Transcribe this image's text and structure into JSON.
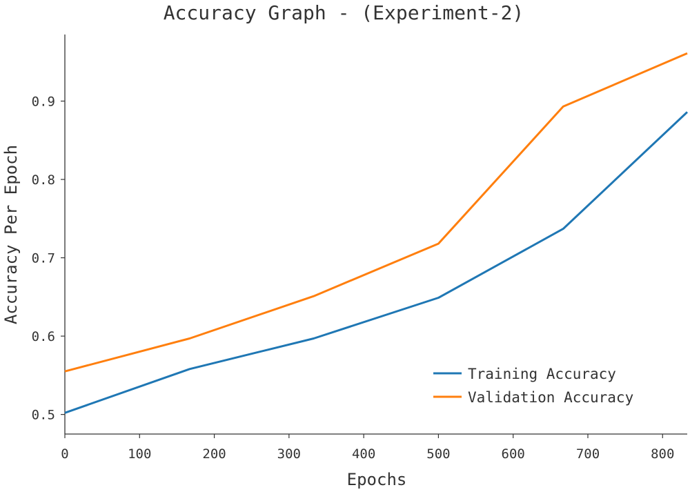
{
  "chart_data": {
    "type": "line",
    "title": "Accuracy Graph - (Experiment-2)",
    "xlabel": "Epochs",
    "ylabel": "Accuracy Per Epoch",
    "xlim": [
      0,
      833
    ],
    "ylim": [
      0.475,
      0.985
    ],
    "xticks": [
      0,
      100,
      200,
      300,
      400,
      500,
      600,
      700,
      800
    ],
    "yticks": [
      0.5,
      0.6,
      0.7,
      0.8,
      0.9
    ],
    "ytick_labels": [
      "0.5",
      "0.6",
      "0.7",
      "0.8",
      "0.9"
    ],
    "legend_position": "lower-right",
    "grid": false,
    "series": [
      {
        "name": "Training Accuracy",
        "color": "#1f77b4",
        "x": [
          0,
          167,
          333,
          500,
          667,
          833
        ],
        "values": [
          0.502,
          0.558,
          0.597,
          0.649,
          0.737,
          0.886
        ]
      },
      {
        "name": "Validation Accuracy",
        "color": "#ff7f0e",
        "x": [
          0,
          167,
          333,
          500,
          667,
          833
        ],
        "values": [
          0.555,
          0.597,
          0.651,
          0.718,
          0.893,
          0.961
        ]
      }
    ]
  }
}
